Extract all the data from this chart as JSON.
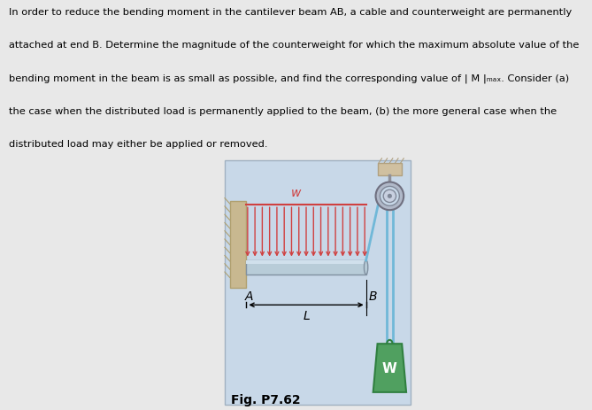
{
  "bg_outer": "#e8e8e8",
  "bg_diagram": "#c8d8e8",
  "wall_color": "#c8b890",
  "wall_edge": "#b0a070",
  "beam_color": "#b8ccd8",
  "beam_top_color": "#d0e0ec",
  "beam_edge": "#8090a0",
  "load_color": "#d04040",
  "cable_color": "#70b8d8",
  "pulley_outer_color": "#b0b8c8",
  "pulley_inner_color": "#c8d0e0",
  "pulley_center_color": "#808898",
  "pulley_axle_color": "#909098",
  "ceiling_color": "#d0c0a0",
  "ceiling_edge": "#b0a080",
  "weight_color": "#50a060",
  "weight_edge": "#308040",
  "text_color": "#000000",
  "label_A": "A",
  "label_B": "B",
  "label_L": "L",
  "label_w": "w",
  "label_W": "W",
  "fig_label": "Fig. P7.62",
  "paragraph": "In order to reduce the bending moment in the cantilever beam AB, a cable and counterweight are permanently\nattached at end B. Determine the magnitude of the counterweight for which the maximum absolute value of the\nbending moment in the beam is as small as possible, and find the corresponding value of | M |max. Consider (a)\nthe case when the distributed load is permanently applied to the beam, (b) the more general case when the\ndistributed load may either be applied or removed.",
  "n_arrows": 17
}
